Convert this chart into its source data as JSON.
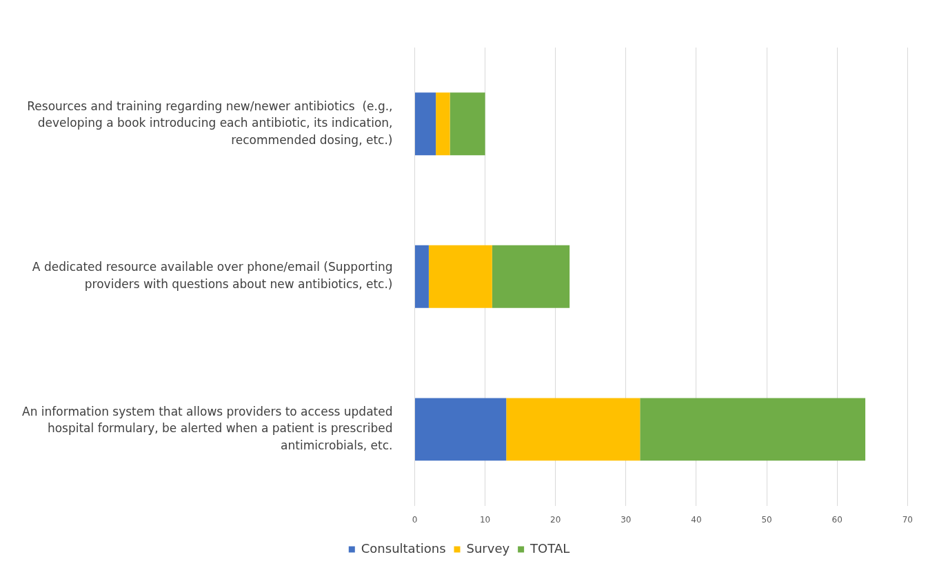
{
  "chart_data": {
    "type": "bar",
    "orientation": "horizontal",
    "stacked": true,
    "categories": [
      "Resources and training regarding new/newer antibiotics  (e.g.,\ndeveloping a book introducing each antibiotic, its indication,\nrecommended dosing, etc.)",
      "A dedicated resource available over phone/email (Supporting\nproviders with questions about new antibiotics, etc.)",
      "An information system that allows providers to access updated\nhospital formulary, be alerted when a patient is prescribed\nantimicrobials, etc."
    ],
    "series": [
      {
        "name": "Consultations",
        "color": "#4472c4",
        "values": [
          3,
          2,
          13
        ]
      },
      {
        "name": "Survey",
        "color": "#ffc000",
        "values": [
          2,
          9,
          19
        ]
      },
      {
        "name": "TOTAL",
        "color": "#70ad47",
        "values": [
          5,
          11,
          32
        ]
      }
    ],
    "xlim": [
      0,
      70
    ],
    "xticks": [
      0,
      10,
      20,
      30,
      40,
      50,
      60,
      70
    ],
    "grid": "x",
    "legend": "bottom"
  }
}
